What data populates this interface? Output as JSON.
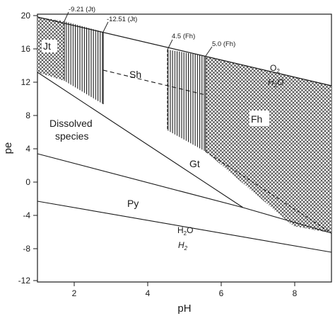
{
  "axes": {
    "x_title": "pH",
    "y_title": "pe",
    "x_ticks": [
      "2",
      "4",
      "6",
      "8"
    ],
    "y_ticks": [
      "20",
      "16",
      "12",
      "8",
      "4",
      "0",
      "-4",
      "-8",
      "-12"
    ]
  },
  "regions": {
    "jt": "Jt",
    "sh": "Sh",
    "fh": "Fh",
    "gt": "Gt",
    "py": "Py",
    "dissolved_line1": "Dissolved",
    "dissolved_line2": "species"
  },
  "boundary_labels": {
    "o2": "O",
    "o2_sub": "2",
    "h2o_upper": "H",
    "h2o_upper_sub": "2",
    "h2o_upper_tail": "O",
    "h2o_lower": "H",
    "h2o_lower_sub": "2",
    "h2o_lower_tail": "O",
    "h2": "H",
    "h2_sub": "2"
  },
  "annotations": {
    "jt_1": "-9.21 (Jt)",
    "jt_2": "-12.51 (Jt)",
    "fh_1": "4.5 (Fh)",
    "fh_2": "5.0 (Fh)"
  },
  "chart_data": {
    "type": "stability-diagram",
    "xlabel": "pH",
    "ylabel": "pe",
    "xlim": [
      1,
      9
    ],
    "ylim": [
      -12,
      20
    ],
    "lines": {
      "o2_h2o": [
        [
          1,
          19.8
        ],
        [
          9,
          11.8
        ]
      ],
      "h2o_h2": [
        [
          1,
          -1.0
        ],
        [
          9,
          -9.0
        ]
      ],
      "py_upper": [
        [
          1,
          4.4
        ],
        [
          6.6,
          -1.8
        ]
      ],
      "dissolved_gt": [
        [
          1,
          13.2
        ],
        [
          6.6,
          -1.8
        ]
      ],
      "gt_fh": [
        [
          5.6,
          5.0
        ],
        [
          9,
          -4.8
        ]
      ],
      "sh_gt_dashed": [
        [
          2.8,
          13.4
        ],
        [
          5.6,
          9.8
        ]
      ],
      "py_fh": [
        [
          6.6,
          -1.8
        ],
        [
          9,
          -4.8
        ]
      ]
    },
    "boundaries_pH": [
      1.75,
      2.8,
      4.55,
      5.6
    ]
  },
  "colors": {
    "ink": "#1a1a1a",
    "paper": "#ffffff"
  }
}
